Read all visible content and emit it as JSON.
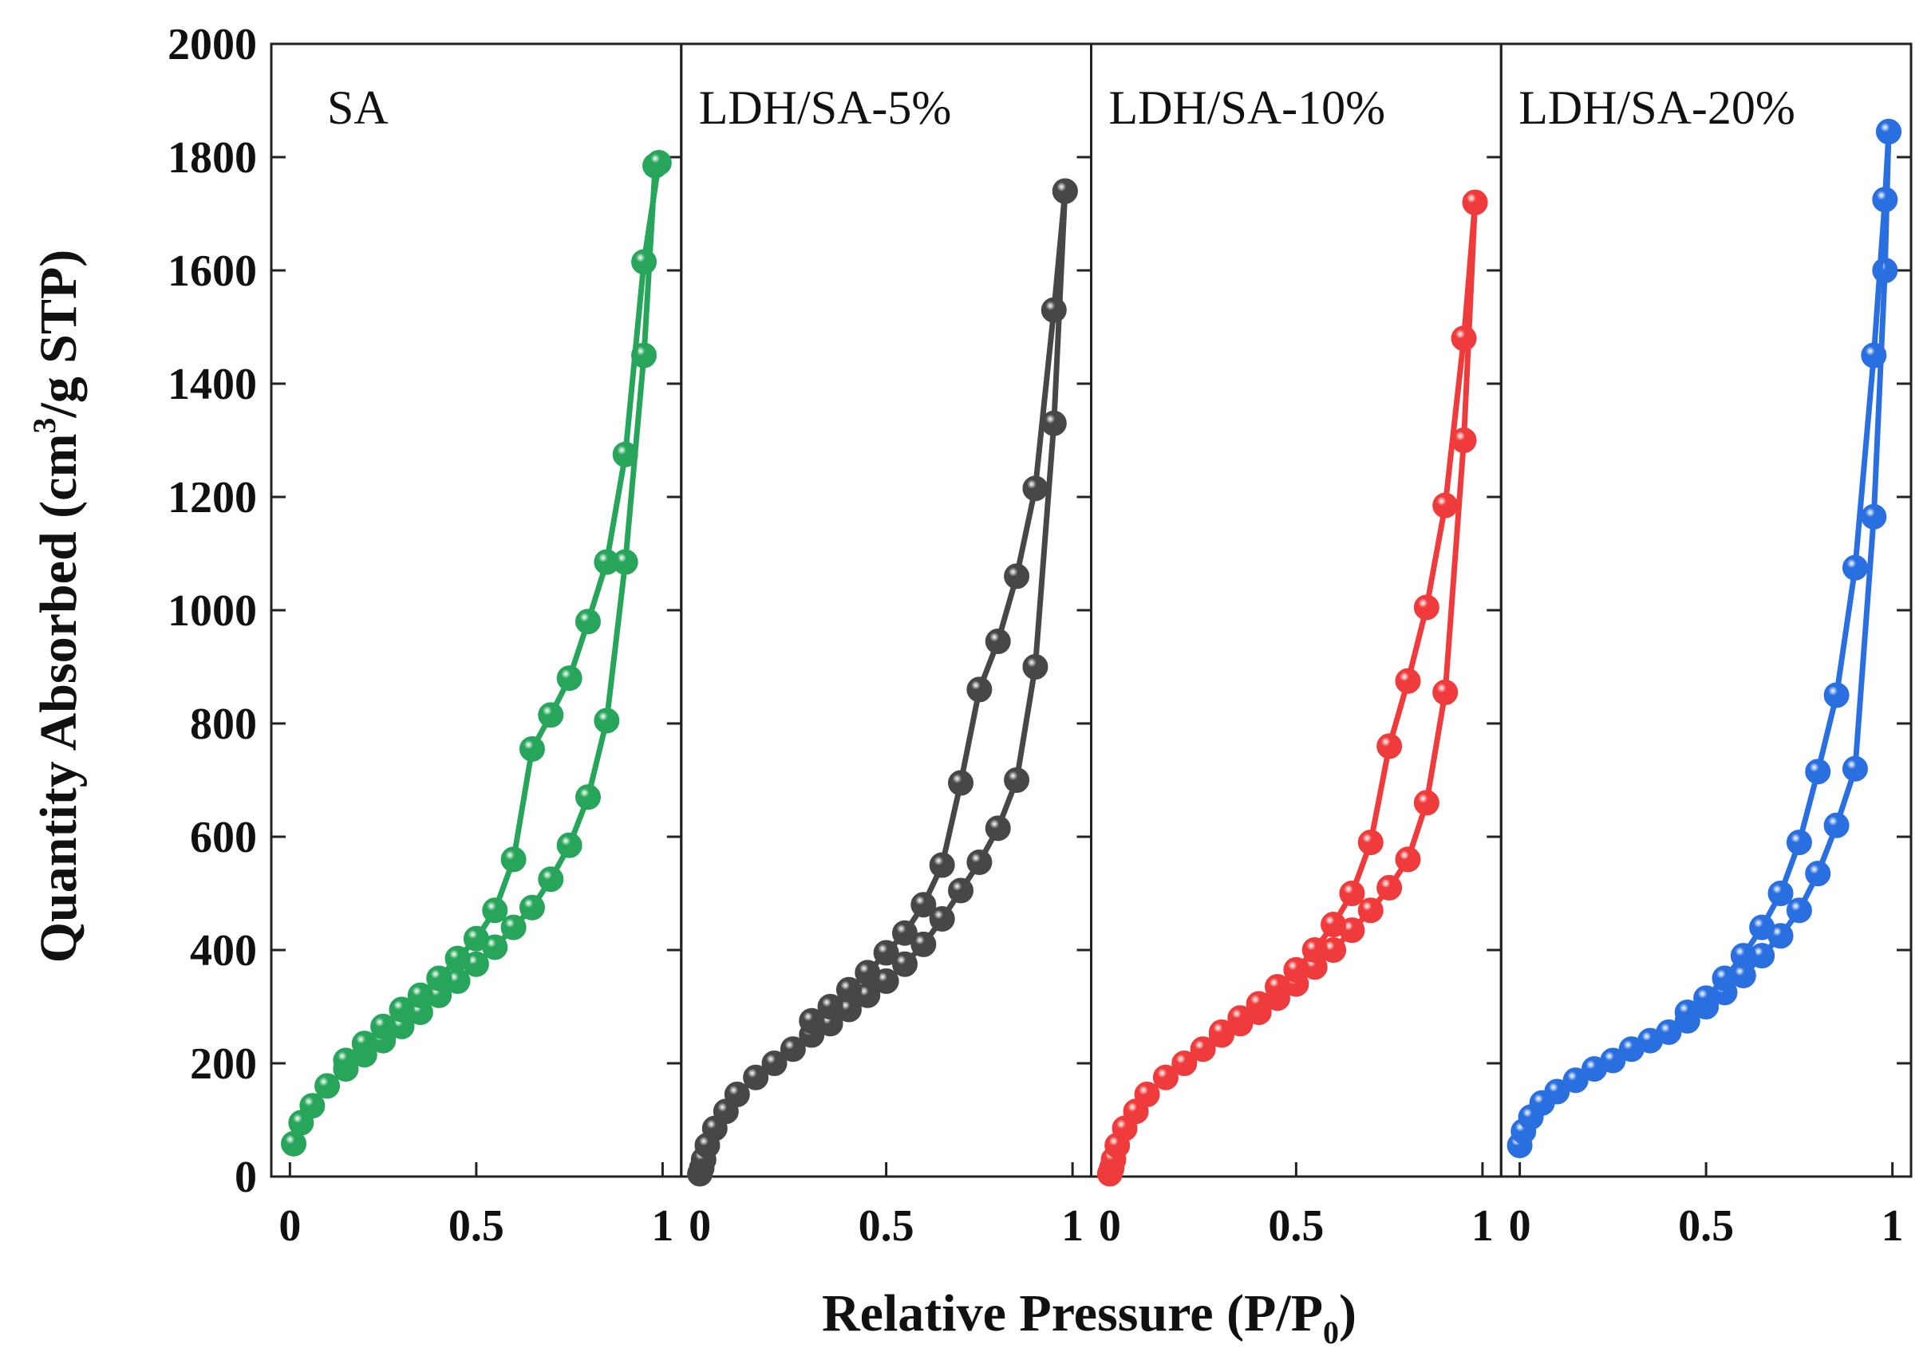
{
  "chart_data": {
    "type": "line",
    "ylabel_text": "Quantity Absorbed (cm",
    "ylabel_sup": "3",
    "ylabel_tail": "/g STP)",
    "xlabel_text": "Relative Pressure (P/P",
    "xlabel_sub": "0",
    "xlabel_tail": ")",
    "ylim": [
      0,
      2000
    ],
    "yticks": [
      "0",
      "200",
      "400",
      "600",
      "800",
      "1000",
      "1200",
      "1400",
      "1600",
      "1800",
      "2000"
    ],
    "xlim": [
      -0.05,
      1.05
    ],
    "grid": false,
    "marker": "sphere",
    "panels": [
      {
        "label": "SA",
        "color": "#27a55a",
        "xticks": [
          "0",
          "0.5",
          "1"
        ],
        "adsorption": {
          "x": [
            0.01,
            0.03,
            0.06,
            0.1,
            0.15,
            0.2,
            0.25,
            0.3,
            0.35,
            0.4,
            0.45,
            0.5,
            0.55,
            0.6,
            0.65,
            0.7,
            0.75,
            0.8,
            0.85,
            0.9,
            0.95,
            0.98,
            0.99
          ],
          "y": [
            58,
            95,
            125,
            160,
            190,
            215,
            240,
            265,
            290,
            320,
            345,
            375,
            405,
            440,
            475,
            525,
            585,
            670,
            805,
            1085,
            1450,
            1785,
            1790
          ]
        },
        "desorption": {
          "x": [
            0.99,
            0.95,
            0.9,
            0.85,
            0.8,
            0.75,
            0.7,
            0.65,
            0.6,
            0.55,
            0.5,
            0.45,
            0.4,
            0.35,
            0.3,
            0.25,
            0.2,
            0.15
          ],
          "y": [
            1790,
            1615,
            1275,
            1085,
            980,
            880,
            815,
            755,
            560,
            470,
            420,
            385,
            350,
            320,
            295,
            265,
            235,
            205
          ]
        }
      },
      {
        "label": "LDH/SA-5%",
        "color": "#474747",
        "xticks": [
          "0",
          "0.5",
          "1"
        ],
        "adsorption": {
          "x": [
            0.0,
            0.005,
            0.01,
            0.02,
            0.04,
            0.07,
            0.1,
            0.15,
            0.2,
            0.25,
            0.3,
            0.35,
            0.4,
            0.45,
            0.5,
            0.55,
            0.6,
            0.65,
            0.7,
            0.75,
            0.8,
            0.85,
            0.9,
            0.95,
            0.98
          ],
          "y": [
            5,
            15,
            30,
            55,
            85,
            115,
            145,
            175,
            200,
            225,
            250,
            270,
            295,
            320,
            345,
            375,
            410,
            455,
            505,
            555,
            615,
            700,
            900,
            1330,
            1740
          ]
        },
        "desorption": {
          "x": [
            0.98,
            0.95,
            0.9,
            0.85,
            0.8,
            0.75,
            0.7,
            0.65,
            0.6,
            0.55,
            0.5,
            0.45,
            0.4,
            0.35,
            0.3
          ],
          "y": [
            1740,
            1530,
            1215,
            1060,
            945,
            860,
            695,
            550,
            480,
            430,
            395,
            360,
            330,
            300,
            275
          ]
        }
      },
      {
        "label": "LDH/SA-10%",
        "color": "#ef3b3b",
        "xticks": [
          "0",
          "0.5",
          "1"
        ],
        "adsorption": {
          "x": [
            0.0,
            0.005,
            0.01,
            0.02,
            0.04,
            0.07,
            0.1,
            0.15,
            0.2,
            0.25,
            0.3,
            0.35,
            0.4,
            0.45,
            0.5,
            0.55,
            0.6,
            0.65,
            0.7,
            0.75,
            0.8,
            0.85,
            0.9,
            0.95,
            0.98
          ],
          "y": [
            5,
            15,
            30,
            55,
            85,
            115,
            145,
            175,
            200,
            225,
            250,
            270,
            290,
            315,
            340,
            370,
            400,
            435,
            470,
            510,
            560,
            660,
            855,
            1300,
            1720
          ]
        },
        "desorption": {
          "x": [
            0.98,
            0.95,
            0.9,
            0.85,
            0.8,
            0.75,
            0.7,
            0.65,
            0.6,
            0.55,
            0.5,
            0.45,
            0.4,
            0.35,
            0.3
          ],
          "y": [
            1720,
            1480,
            1185,
            1005,
            875,
            760,
            590,
            500,
            445,
            400,
            365,
            335,
            305,
            280,
            255
          ]
        }
      },
      {
        "label": "LDH/SA-20%",
        "color": "#2a6fe0",
        "xticks": [
          "0",
          "0.5",
          "1"
        ],
        "adsorption": {
          "x": [
            0.0,
            0.01,
            0.03,
            0.06,
            0.1,
            0.15,
            0.2,
            0.25,
            0.3,
            0.35,
            0.4,
            0.45,
            0.5,
            0.55,
            0.6,
            0.65,
            0.7,
            0.75,
            0.8,
            0.85,
            0.9,
            0.95,
            0.98,
            0.99
          ],
          "y": [
            55,
            80,
            105,
            130,
            150,
            170,
            190,
            205,
            225,
            240,
            255,
            275,
            300,
            325,
            355,
            390,
            425,
            470,
            535,
            620,
            720,
            1165,
            1600,
            1845
          ]
        },
        "desorption": {
          "x": [
            0.99,
            0.98,
            0.95,
            0.9,
            0.85,
            0.8,
            0.75,
            0.7,
            0.65,
            0.6,
            0.55,
            0.5,
            0.45
          ],
          "y": [
            1845,
            1725,
            1450,
            1075,
            850,
            715,
            590,
            500,
            440,
            390,
            350,
            315,
            290
          ]
        }
      }
    ]
  }
}
